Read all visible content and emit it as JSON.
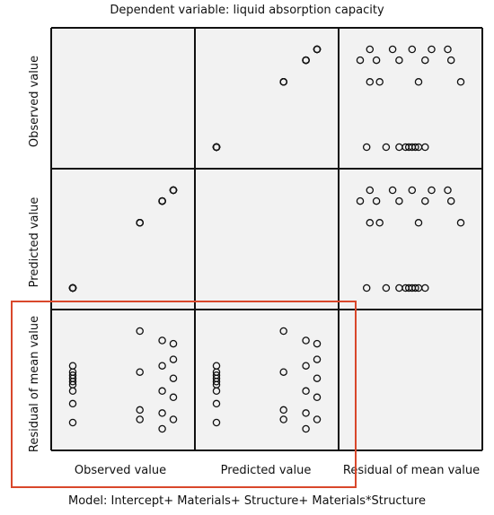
{
  "title": "Dependent variable: liquid absorption capacity",
  "footer": "Model: Intercept+ Materials+ Structure+ Materials*Structure",
  "chart_data": {
    "type": "scatter",
    "matrix": true,
    "variables": [
      "Observed value",
      "Predicted value",
      "Residual of mean value"
    ],
    "row_labels": [
      "Observed value",
      "Predicted value",
      "Residual of mean value"
    ],
    "col_labels": [
      "Observed value",
      "Predicted value",
      "Residual of mean value"
    ],
    "highlight_color": "#d9472b",
    "observations": [
      {
        "observed": 0.0,
        "predicted": 0.0,
        "residual": 0.2
      },
      {
        "observed": 0.0,
        "predicted": 0.0,
        "residual": 0.1
      },
      {
        "observed": 0.0,
        "predicted": 0.0,
        "residual": 0.0
      },
      {
        "observed": 0.0,
        "predicted": 0.0,
        "residual": -0.05
      },
      {
        "observed": 0.0,
        "predicted": 0.0,
        "residual": -0.1
      },
      {
        "observed": 0.0,
        "predicted": 0.0,
        "residual": -0.2
      },
      {
        "observed": 0.0,
        "predicted": 0.0,
        "residual": -0.4
      },
      {
        "observed": 0.0,
        "predicted": 0.0,
        "residual": -0.7
      },
      {
        "observed": 0.0,
        "predicted": 0.0,
        "residual": 0.05
      },
      {
        "observed": 3.0,
        "predicted": 3.0,
        "residual": 0.75
      },
      {
        "observed": 3.0,
        "predicted": 3.0,
        "residual": 0.1
      },
      {
        "observed": 3.0,
        "predicted": 3.0,
        "residual": -0.5
      },
      {
        "observed": 3.0,
        "predicted": 3.0,
        "residual": -0.65
      },
      {
        "observed": 4.0,
        "predicted": 4.0,
        "residual": 0.6
      },
      {
        "observed": 4.0,
        "predicted": 4.0,
        "residual": 0.2
      },
      {
        "observed": 4.0,
        "predicted": 4.0,
        "residual": -0.2
      },
      {
        "observed": 4.0,
        "predicted": 4.0,
        "residual": -0.55
      },
      {
        "observed": 4.0,
        "predicted": 4.0,
        "residual": -0.8
      },
      {
        "observed": 4.5,
        "predicted": 4.5,
        "residual": 0.55
      },
      {
        "observed": 4.5,
        "predicted": 4.5,
        "residual": 0.3
      },
      {
        "observed": 4.5,
        "predicted": 4.5,
        "residual": 0.0
      },
      {
        "observed": 4.5,
        "predicted": 4.5,
        "residual": -0.3
      },
      {
        "observed": 4.5,
        "predicted": 4.5,
        "residual": -0.65
      }
    ]
  }
}
